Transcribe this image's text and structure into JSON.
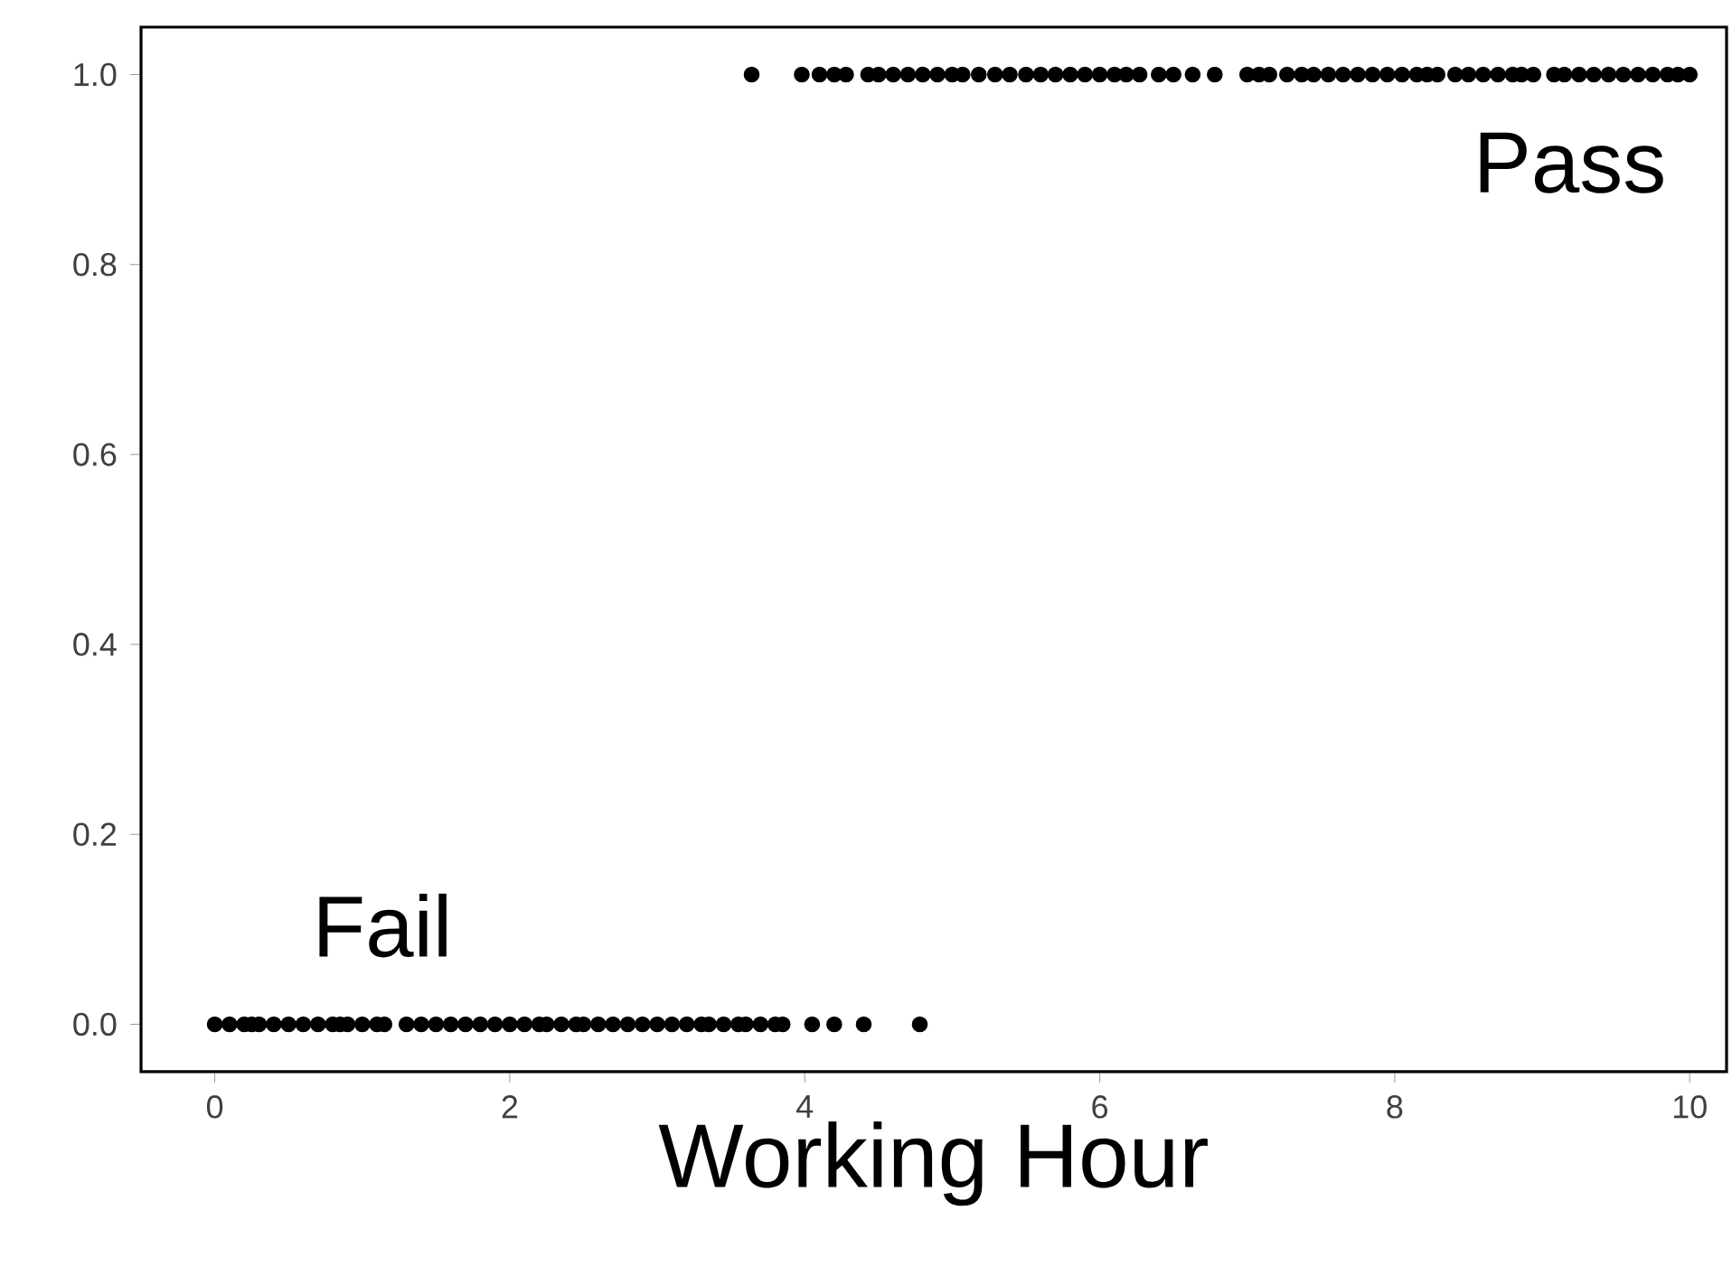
{
  "chart_data": {
    "type": "scatter",
    "xlabel": "Working Hour",
    "x": [
      0,
      0.1,
      0.2,
      0.25,
      0.3,
      0.4,
      0.5,
      0.6,
      0.7,
      0.8,
      0.85,
      0.9,
      1.0,
      1.1,
      1.15,
      1.3,
      1.4,
      1.5,
      1.6,
      1.7,
      1.8,
      1.9,
      2.0,
      2.1,
      2.2,
      2.25,
      2.35,
      2.45,
      2.5,
      2.6,
      2.7,
      2.8,
      2.9,
      3.0,
      3.1,
      3.2,
      3.3,
      3.35,
      3.45,
      3.55,
      3.6,
      3.7,
      3.8,
      3.85,
      4.05,
      4.2,
      4.4,
      4.78,
      3.64,
      3.98,
      4.1,
      4.2,
      4.28,
      4.43,
      4.5,
      4.6,
      4.7,
      4.8,
      4.9,
      5.0,
      5.07,
      5.18,
      5.29,
      5.39,
      5.5,
      5.6,
      5.7,
      5.8,
      5.9,
      6.0,
      6.1,
      6.18,
      6.27,
      6.4,
      6.5,
      6.63,
      6.78,
      7.0,
      7.08,
      7.15,
      7.27,
      7.37,
      7.45,
      7.55,
      7.65,
      7.75,
      7.85,
      7.95,
      8.05,
      8.15,
      8.22,
      8.29,
      8.41,
      8.5,
      8.6,
      8.7,
      8.8,
      8.86,
      8.94,
      9.08,
      9.15,
      9.25,
      9.35,
      9.45,
      9.55,
      9.65,
      9.75,
      9.85,
      9.92,
      10.0
    ],
    "values": [
      0,
      0,
      0,
      0,
      0,
      0,
      0,
      0,
      0,
      0,
      0,
      0,
      0,
      0,
      0,
      0,
      0,
      0,
      0,
      0,
      0,
      0,
      0,
      0,
      0,
      0,
      0,
      0,
      0,
      0,
      0,
      0,
      0,
      0,
      0,
      0,
      0,
      0,
      0,
      0,
      0,
      0,
      0,
      0,
      0,
      0,
      0,
      0,
      1,
      1,
      1,
      1,
      1,
      1,
      1,
      1,
      1,
      1,
      1,
      1,
      1,
      1,
      1,
      1,
      1,
      1,
      1,
      1,
      1,
      1,
      1,
      1,
      1,
      1,
      1,
      1,
      1,
      1,
      1,
      1,
      1,
      1,
      1,
      1,
      1,
      1,
      1,
      1,
      1,
      1,
      1,
      1,
      1,
      1,
      1,
      1,
      1,
      1,
      1,
      1,
      1,
      1,
      1,
      1,
      1,
      1,
      1,
      1,
      1,
      1
    ],
    "color": "#000000",
    "xlim": [
      -0.5,
      10.25
    ],
    "ylim": [
      -0.05,
      1.05
    ],
    "xticks": [
      0,
      2,
      4,
      6,
      8,
      10
    ],
    "yticks": [
      {
        "value": 0,
        "label": "0.0"
      },
      0.2,
      0.4,
      0.6,
      0.8,
      {
        "value": 1,
        "label": "1.0"
      }
    ],
    "annotations": [
      "Pass",
      "Fail"
    ]
  }
}
